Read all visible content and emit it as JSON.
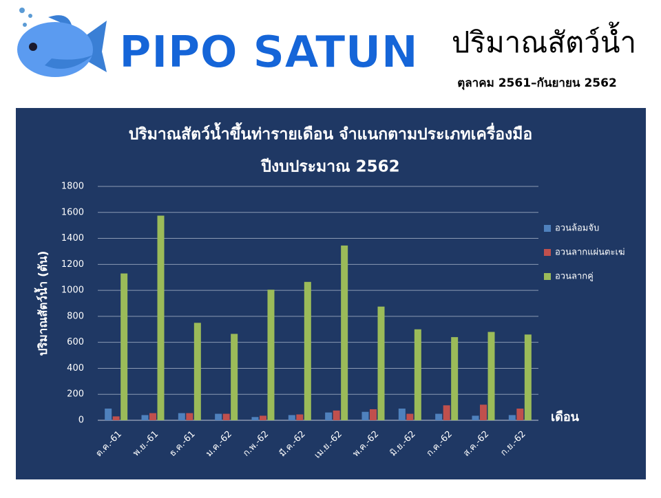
{
  "header": {
    "brand": "PIPO  SATUN",
    "title": "ปริมาณสัตว์น้ำ",
    "period": "ตุลาคม 2561–กันยายน 2562"
  },
  "chart_data": {
    "type": "bar",
    "title": "ปริมาณสัตว์น้ำขึ้นท่ารายเดือน จำแนกตามประเภทเครื่องมือ",
    "subtitle": "ปีงบประมาณ 2562",
    "y_label": "ปริมาณสัตว์น้ำ (ตัน)",
    "x_label": "เดือน",
    "categories": [
      "ต.ค.-61",
      "พ.ย.-61",
      "ธ.ค.-61",
      "ม.ค.-62",
      "ก.พ.-62",
      "มี.ค.-62",
      "เม.ย.-62",
      "พ.ค.-62",
      "มิ.ย.-62",
      "ก.ค.-62",
      "ส.ค.-62",
      "ก.ย.-62"
    ],
    "series": [
      {
        "name": "อวนล้อมจับ",
        "color": "#4f81bd",
        "values": [
          90,
          40,
          55,
          50,
          25,
          40,
          60,
          65,
          90,
          50,
          35,
          40
        ]
      },
      {
        "name": "อวนลากแผ่นตะเฆ่",
        "color": "#c0504d",
        "values": [
          30,
          55,
          55,
          50,
          35,
          45,
          75,
          85,
          50,
          115,
          120,
          90
        ]
      },
      {
        "name": "อวนลากคู่",
        "color": "#9bbb59",
        "values": [
          1130,
          1575,
          750,
          665,
          1005,
          1065,
          1345,
          875,
          700,
          640,
          680,
          660
        ]
      }
    ],
    "ylim": [
      0,
      1800
    ],
    "yticks": [
      0,
      200,
      400,
      600,
      800,
      1000,
      1200,
      1400,
      1600,
      1800
    ],
    "grid": true,
    "legend": "right"
  }
}
